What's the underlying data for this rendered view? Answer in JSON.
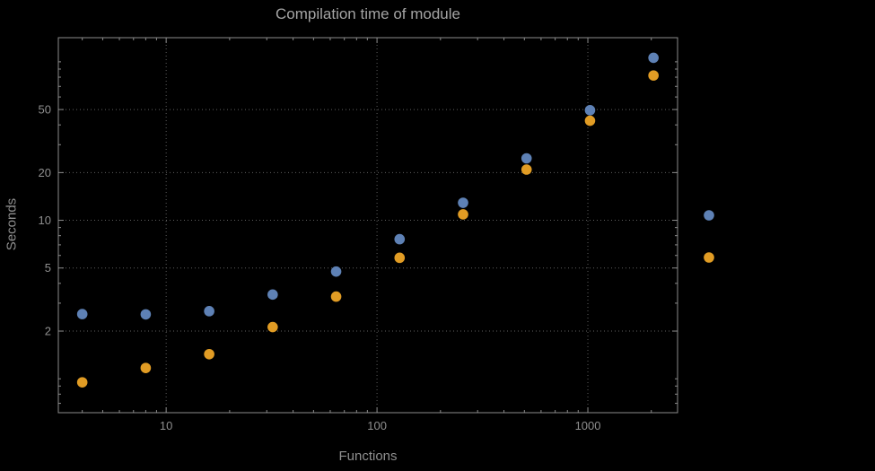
{
  "chart_data": {
    "type": "scatter",
    "title": "Compilation time of module",
    "xlabel": "Functions",
    "ylabel": "Seconds",
    "x_scale": "log",
    "y_scale": "log",
    "xlim": [
      3.08,
      2664
    ],
    "ylim": [
      0.611,
      142
    ],
    "grid": true,
    "x_ticks": [
      {
        "value": 10,
        "label": "10"
      },
      {
        "value": 100,
        "label": "100"
      },
      {
        "value": 1000,
        "label": "1000"
      }
    ],
    "y_ticks": [
      {
        "value": 2,
        "label": "2"
      },
      {
        "value": 5,
        "label": "5"
      },
      {
        "value": 10,
        "label": "10"
      },
      {
        "value": 20,
        "label": "20"
      },
      {
        "value": 50,
        "label": "50"
      }
    ],
    "x": [
      4,
      8,
      16,
      32,
      64,
      128,
      256,
      512,
      1024,
      2048
    ],
    "series": [
      {
        "name": "series-1",
        "color": "#5e81b5",
        "values": [
          2.56,
          2.55,
          2.67,
          3.4,
          4.75,
          7.6,
          12.9,
          24.6,
          49.5,
          106
        ]
      },
      {
        "name": "series-2",
        "color": "#e19c24",
        "values": [
          0.95,
          1.17,
          1.43,
          2.12,
          3.3,
          5.8,
          10.9,
          20.9,
          42.5,
          82
        ]
      }
    ],
    "legend": {
      "position": "right",
      "markers": [
        {
          "name": "series-1-legend-marker",
          "color": "#5e81b5"
        },
        {
          "name": "series-2-legend-marker",
          "color": "#e19c24"
        }
      ]
    },
    "grid_color": "#5f5f5f",
    "frame_color": "#8c8c8c",
    "label_color": "#8f8f8f",
    "title_color": "#a4a4a4",
    "background": "#000000"
  }
}
